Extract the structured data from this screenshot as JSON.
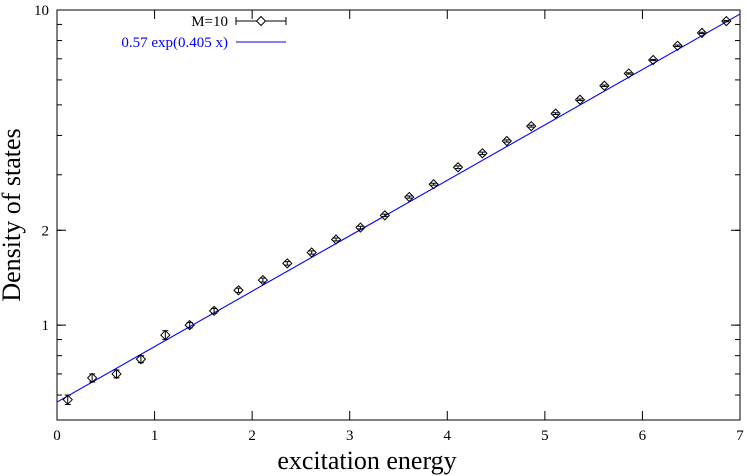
{
  "chart_data": {
    "type": "scatter",
    "xlabel": "excitation energy",
    "ylabel": "Density of states",
    "xlim": [
      0,
      7
    ],
    "ylim": [
      0.5,
      10
    ],
    "yscale": "log",
    "grid": false,
    "legend_position": "top-left",
    "x_ticks": [
      "0",
      "1",
      "2",
      "3",
      "4",
      "5",
      "6",
      "7"
    ],
    "y_ticks": [
      {
        "value": 1,
        "label": "1"
      },
      {
        "value": 2,
        "label": "2"
      },
      {
        "value": 10,
        "label": "10"
      }
    ],
    "series": [
      {
        "name": "M=10",
        "kind": "points-with-errorbars",
        "marker": "diamond",
        "color": "#000000",
        "x": [
          0.11,
          0.36,
          0.61,
          0.86,
          1.11,
          1.36,
          1.61,
          1.86,
          2.11,
          2.36,
          2.61,
          2.86,
          3.11,
          3.36,
          3.61,
          3.86,
          4.11,
          4.36,
          4.61,
          4.86,
          5.11,
          5.36,
          5.61,
          5.86,
          6.11,
          6.36,
          6.61,
          6.86
        ],
        "y": [
          0.58,
          0.68,
          0.7,
          0.78,
          0.93,
          1.0,
          1.11,
          1.29,
          1.39,
          1.57,
          1.7,
          1.87,
          2.04,
          2.23,
          2.55,
          2.8,
          3.17,
          3.51,
          3.84,
          4.28,
          4.69,
          5.19,
          5.75,
          6.29,
          6.94,
          7.7,
          8.46,
          9.22
        ],
        "yerr": [
          0.02,
          0.02,
          0.02,
          0.02,
          0.03,
          0.02,
          0.02,
          0.02,
          0.02,
          0.02,
          0.02,
          0.02,
          0.02,
          0.02,
          0.02,
          0.02,
          0.03,
          0.03,
          0.03,
          0.03,
          0.03,
          0.03,
          0.03,
          0.03,
          0.03,
          0.04,
          0.04,
          0.04
        ]
      },
      {
        "name": "0.57 exp(0.405 x)",
        "kind": "line",
        "color": "#0000ff",
        "function": {
          "a": 0.57,
          "b": 0.405
        }
      }
    ]
  }
}
